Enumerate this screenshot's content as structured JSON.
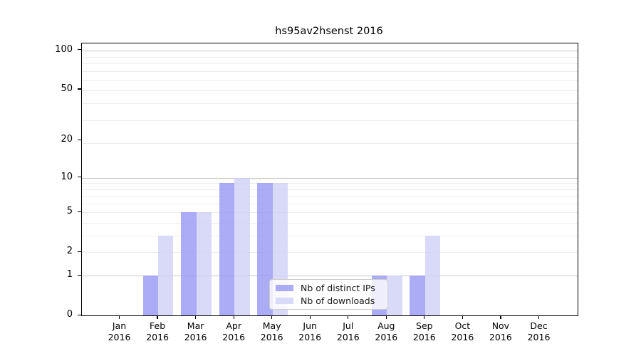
{
  "title": "hs95av2hsenst 2016",
  "colors": {
    "ips_bar": "rgba(151,151,244,0.8)",
    "downloads_bar": "rgba(208,208,246,0.8)",
    "ips_solid": "#acacf6",
    "downloads_solid": "#d9d9f8",
    "grid_minor": "#ececec",
    "grid_major": "#c6c6c6",
    "axis": "#000000"
  },
  "legend": {
    "items": [
      {
        "label": "Nb of distinct IPs",
        "series": "ips"
      },
      {
        "label": "Nb of downloads",
        "series": "downloads"
      }
    ]
  },
  "chart_data": {
    "type": "bar",
    "title": "hs95av2hsenst 2016",
    "categories": [
      "Jan",
      "Feb",
      "Mar",
      "Apr",
      "May",
      "Jun",
      "Jul",
      "Aug",
      "Sep",
      "Oct",
      "Nov",
      "Dec"
    ],
    "year": "2016",
    "series": [
      {
        "name": "Nb of distinct IPs",
        "values": [
          0,
          1,
          5,
          9,
          9,
          0,
          0,
          1,
          1,
          0,
          0,
          0
        ]
      },
      {
        "name": "Nb of downloads",
        "values": [
          0,
          3,
          5,
          10,
          9,
          0,
          0,
          1,
          3,
          0,
          0,
          0
        ]
      }
    ],
    "yticks": [
      0,
      1,
      2,
      5,
      10,
      20,
      50,
      100
    ],
    "scale": "log1p",
    "ylim": [
      0,
      113
    ],
    "grid": "on",
    "legend_position": "lower-center"
  }
}
